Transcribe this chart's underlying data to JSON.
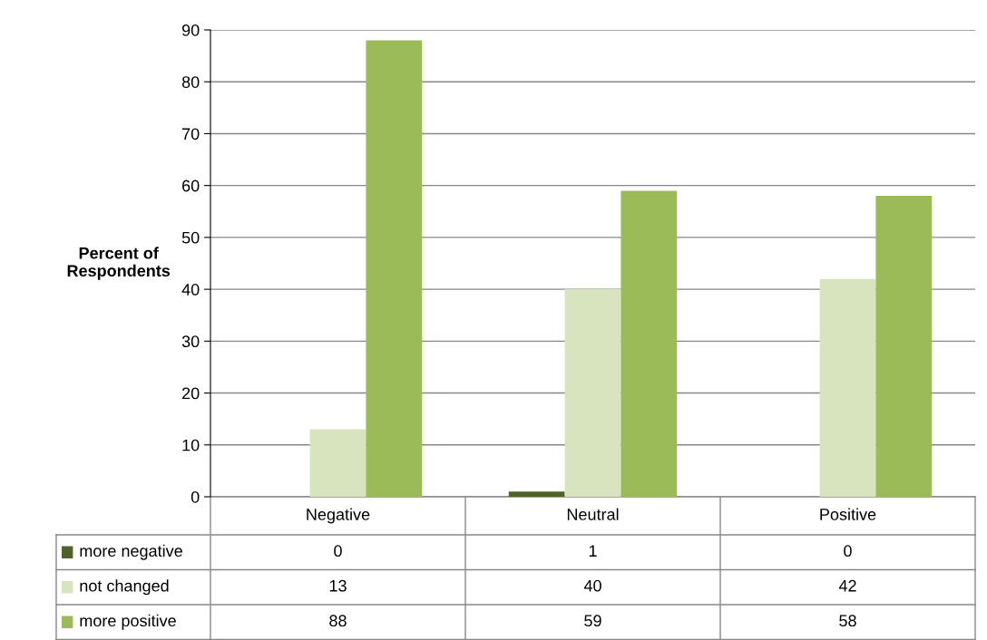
{
  "chart_data": {
    "type": "bar",
    "ylabel": "Percent of\nRespondents",
    "categories": [
      "Negative",
      "Neutral",
      "Positive"
    ],
    "series": [
      {
        "name": "more negative",
        "color": "#4f6228",
        "values": [
          0,
          1,
          0
        ]
      },
      {
        "name": "not changed",
        "color": "#d7e4bd",
        "values": [
          13,
          40,
          42
        ]
      },
      {
        "name": "more positive",
        "color": "#9bbb59",
        "values": [
          88,
          59,
          58
        ]
      }
    ],
    "ylim": [
      0,
      90
    ],
    "yticks": [
      0,
      10,
      20,
      30,
      40,
      50,
      60,
      70,
      80,
      90
    ],
    "grid": "y",
    "data_labels": true,
    "legend": "bottom left"
  }
}
